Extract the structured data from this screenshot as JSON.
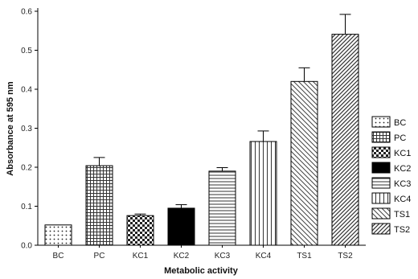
{
  "chart_data": {
    "type": "bar",
    "xlabel": "Metabolic activity",
    "ylabel": "Absorbance at 595 nm",
    "ylim": [
      0,
      0.6
    ],
    "yticks": [
      "0.0",
      "0.1",
      "0.2",
      "0.3",
      "0.4",
      "0.5",
      "0.6"
    ],
    "categories": [
      "BC",
      "PC",
      "KC1",
      "KC2",
      "KC3",
      "KC4",
      "TS1",
      "TS2"
    ],
    "values": [
      0.052,
      0.204,
      0.076,
      0.095,
      0.19,
      0.266,
      0.42,
      0.541
    ],
    "errors": [
      0.0,
      0.021,
      0.004,
      0.009,
      0.009,
      0.027,
      0.035,
      0.051
    ],
    "patterns": [
      "dots",
      "grid",
      "checker",
      "solid-black",
      "horizontal-lines",
      "vertical-lines",
      "diagonal-down",
      "diagonal-up"
    ],
    "legend": [
      "BC",
      "PC",
      "KC1",
      "KC2",
      "KC3",
      "KC4",
      "TS1",
      "TS2"
    ],
    "legend_position": "right",
    "grid": false
  }
}
